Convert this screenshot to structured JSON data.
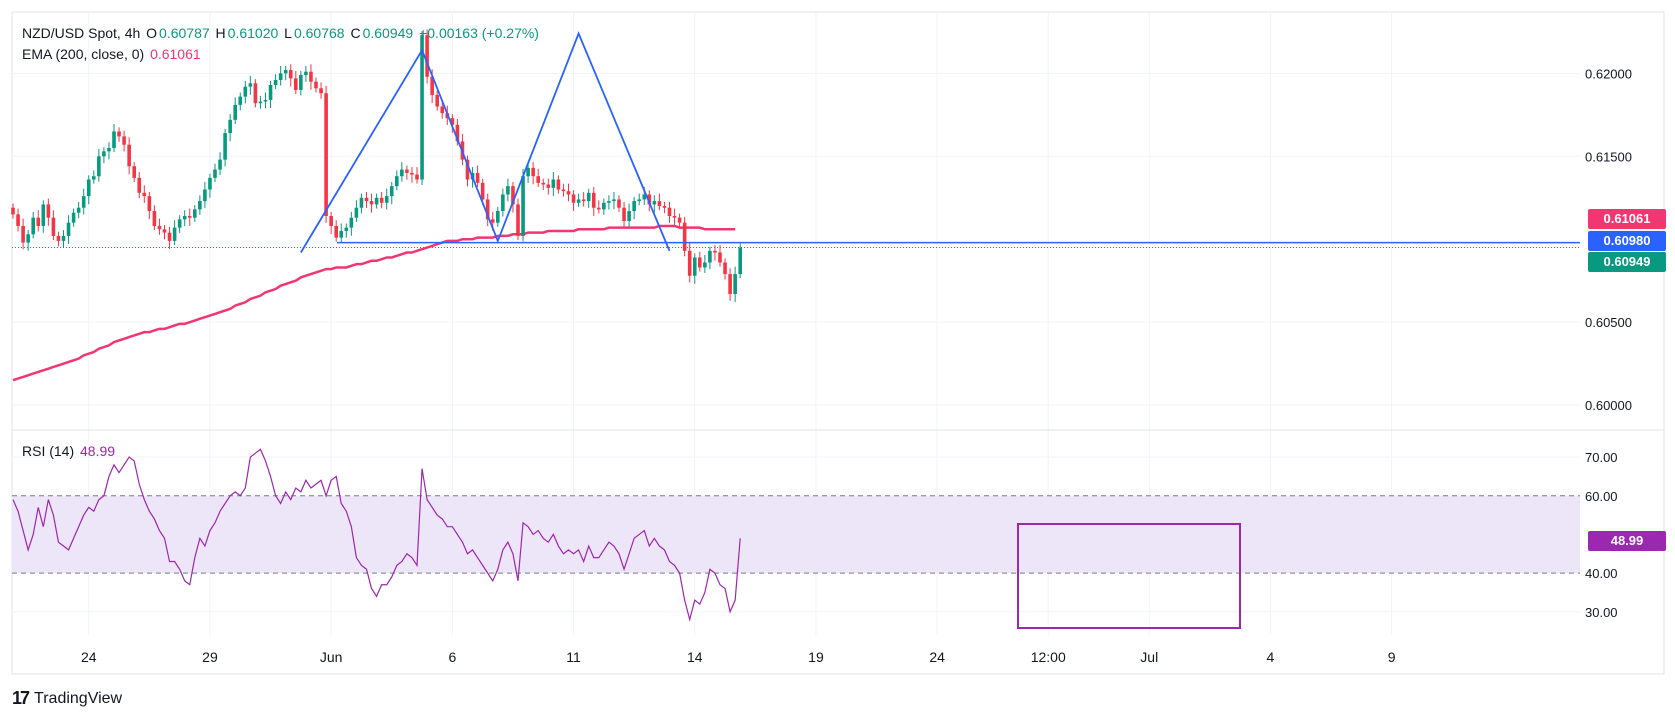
{
  "header": {
    "symbol": "NZD/USD Spot, 4h",
    "open_label": "O",
    "open": "0.60787",
    "high_label": "H",
    "high": "0.61020",
    "low_label": "L",
    "low": "0.60768",
    "close_label": "C",
    "close": "0.60949",
    "change": "+0.00163 (+0.27%)",
    "ema_label": "EMA (200, close, 0)",
    "ema_value": "0.61061",
    "rsi_label": "RSI (14)",
    "rsi_value": "48.99"
  },
  "badges": {
    "ema": "0.61061",
    "line": "0.60980",
    "price": "0.60949",
    "rsi": "48.99"
  },
  "colors": {
    "up": "#089981",
    "down": "#f23645",
    "ema": "#f23672",
    "rsi": "#9c27b0",
    "pattern": "#2962ff",
    "band": "#ede6f9"
  },
  "footer": {
    "brand": "TradingView"
  },
  "chart_data": [
    {
      "type": "candlestick",
      "title": "NZD/USD Spot, 4h",
      "ylim": [
        0.5985,
        0.6237
      ],
      "y_ticks": [
        "0.62000",
        "0.61500",
        "0.60500",
        "0.60000"
      ],
      "x_ticks": [
        "24",
        "29",
        "Jun",
        "6",
        "11",
        "14",
        "19",
        "24",
        "12:00",
        "Jul",
        "4",
        "9"
      ],
      "x_tick_index": [
        15,
        39,
        63,
        87,
        111,
        135,
        159,
        183,
        205,
        225,
        249,
        273
      ],
      "close": [
        0.6115,
        0.6108,
        0.6098,
        0.6103,
        0.6113,
        0.6108,
        0.6121,
        0.6113,
        0.6102,
        0.6099,
        0.6102,
        0.611,
        0.6116,
        0.6119,
        0.6126,
        0.6136,
        0.6138,
        0.615,
        0.6153,
        0.6155,
        0.6165,
        0.6162,
        0.6157,
        0.6144,
        0.6137,
        0.6128,
        0.6126,
        0.6117,
        0.6108,
        0.6106,
        0.6104,
        0.6099,
        0.6107,
        0.6112,
        0.6114,
        0.6113,
        0.6118,
        0.6123,
        0.613,
        0.6137,
        0.6142,
        0.6148,
        0.6164,
        0.6172,
        0.6181,
        0.6186,
        0.6192,
        0.6194,
        0.6182,
        0.6183,
        0.6184,
        0.6193,
        0.6196,
        0.62,
        0.6202,
        0.6197,
        0.619,
        0.6199,
        0.6201,
        0.6195,
        0.6191,
        0.6188,
        0.6114,
        0.6108,
        0.6101,
        0.6105,
        0.6107,
        0.6113,
        0.6119,
        0.6125,
        0.6123,
        0.6121,
        0.6125,
        0.6122,
        0.6126,
        0.6132,
        0.6138,
        0.6142,
        0.614,
        0.6139,
        0.6136,
        0.6223,
        0.6198,
        0.6187,
        0.618,
        0.6176,
        0.6173,
        0.6169,
        0.6159,
        0.6148,
        0.6136,
        0.614,
        0.6134,
        0.6124,
        0.6112,
        0.611,
        0.6117,
        0.6127,
        0.6132,
        0.6121,
        0.6102,
        0.6138,
        0.6143,
        0.6138,
        0.6134,
        0.6133,
        0.6131,
        0.6136,
        0.613,
        0.6129,
        0.6127,
        0.6122,
        0.6124,
        0.6123,
        0.6128,
        0.6119,
        0.6118,
        0.6122,
        0.6123,
        0.6124,
        0.6119,
        0.6111,
        0.6117,
        0.6123,
        0.6124,
        0.6127,
        0.6121,
        0.6123,
        0.612,
        0.6119,
        0.6114,
        0.6113,
        0.611,
        0.6093,
        0.6078,
        0.6089,
        0.6083,
        0.6086,
        0.6093,
        0.6092,
        0.6086,
        0.6079,
        0.6067,
        0.6079,
        0.6095
      ],
      "ema200": [
        0.6015,
        0.6016,
        0.6017,
        0.6018,
        0.6019,
        0.602,
        0.6021,
        0.6022,
        0.6023,
        0.6024,
        0.6025,
        0.6026,
        0.6027,
        0.6028,
        0.603,
        0.6031,
        0.6032,
        0.6034,
        0.6035,
        0.6036,
        0.6038,
        0.6039,
        0.604,
        0.6041,
        0.6042,
        0.6043,
        0.6044,
        0.6044,
        0.6045,
        0.6046,
        0.6046,
        0.6047,
        0.6048,
        0.6049,
        0.6049,
        0.605,
        0.6051,
        0.6052,
        0.6053,
        0.6054,
        0.6055,
        0.6056,
        0.6057,
        0.6058,
        0.606,
        0.6061,
        0.6062,
        0.6064,
        0.6065,
        0.6066,
        0.6068,
        0.6069,
        0.607,
        0.6072,
        0.6073,
        0.6074,
        0.6075,
        0.6077,
        0.6078,
        0.6079,
        0.608,
        0.6081,
        0.6082,
        0.6082,
        0.6083,
        0.6083,
        0.6083,
        0.6084,
        0.6085,
        0.6085,
        0.6086,
        0.6087,
        0.6087,
        0.6088,
        0.6089,
        0.6089,
        0.609,
        0.6091,
        0.6092,
        0.6092,
        0.6093,
        0.6094,
        0.6095,
        0.6096,
        0.6097,
        0.6098,
        0.6099,
        0.6099,
        0.6099,
        0.61,
        0.61,
        0.61,
        0.6101,
        0.6101,
        0.6101,
        0.6101,
        0.6102,
        0.6102,
        0.6102,
        0.6103,
        0.6103,
        0.6103,
        0.6104,
        0.6104,
        0.6104,
        0.6104,
        0.6105,
        0.6105,
        0.6105,
        0.6105,
        0.6105,
        0.6105,
        0.6106,
        0.6106,
        0.6106,
        0.6106,
        0.6106,
        0.6106,
        0.6107,
        0.6107,
        0.6107,
        0.6107,
        0.6107,
        0.6107,
        0.6107,
        0.6107,
        0.6107,
        0.6107,
        0.6108,
        0.6108,
        0.6108,
        0.6108,
        0.6107,
        0.6107,
        0.6107,
        0.6107,
        0.6107,
        0.6106,
        0.6106,
        0.6106,
        0.6106,
        0.6106,
        0.6106,
        0.6106
      ],
      "support_level": 0.6098,
      "pattern_points": [
        [
          57,
          0.6092
        ],
        [
          81,
          0.6214
        ],
        [
          96,
          0.6099
        ],
        [
          112,
          0.6224
        ],
        [
          130,
          0.6093
        ]
      ]
    },
    {
      "type": "line",
      "title": "RSI (14)",
      "ylim": [
        24,
        77
      ],
      "y_ticks": [
        "70.00",
        "60.00",
        "40.00",
        "30.00"
      ],
      "band": [
        40,
        60
      ],
      "values": [
        59,
        56,
        51,
        46,
        50,
        57,
        52,
        59,
        55,
        48,
        47,
        46,
        49,
        52,
        55,
        57,
        56,
        59,
        60,
        65,
        68,
        66,
        68,
        70,
        69,
        63,
        59,
        56,
        54,
        51,
        49,
        43,
        43,
        41,
        38,
        37,
        44,
        49,
        47,
        51,
        53,
        56,
        58,
        60,
        61,
        60,
        62,
        70,
        71,
        72,
        69,
        65,
        60,
        58,
        61,
        59,
        62,
        61,
        64,
        62,
        63,
        64,
        60,
        64,
        65,
        58,
        56,
        52,
        44,
        42,
        41,
        36,
        34,
        37,
        37,
        39,
        42,
        43,
        45,
        44,
        42,
        67,
        59,
        57,
        55,
        54,
        52,
        52,
        50,
        48,
        45,
        46,
        44,
        42,
        40,
        38,
        41,
        46,
        48,
        45,
        38,
        53,
        52,
        50,
        51,
        49,
        48,
        50,
        47,
        45,
        46,
        45,
        46,
        43,
        47,
        44,
        44,
        46,
        48,
        47,
        45,
        41,
        45,
        49,
        50,
        51,
        47,
        49,
        47,
        46,
        43,
        42,
        40,
        33,
        28,
        33,
        32,
        35,
        41,
        40,
        37,
        36,
        30,
        33,
        49
      ]
    }
  ]
}
